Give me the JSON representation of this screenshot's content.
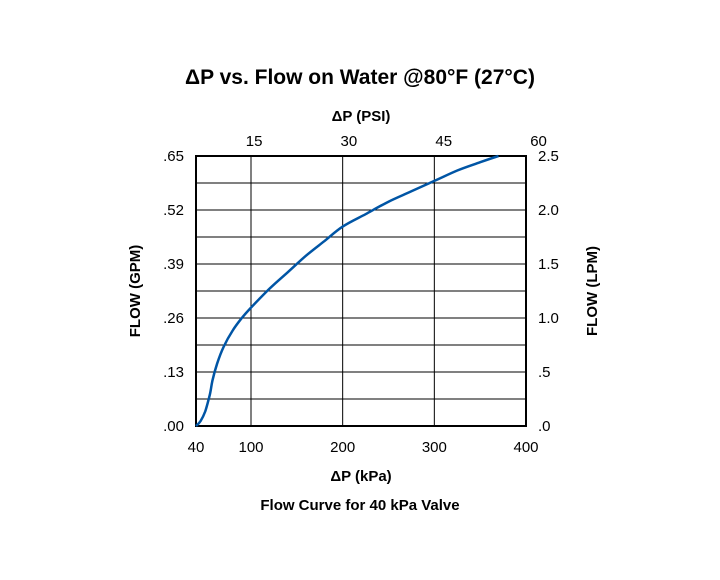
{
  "chart_data": {
    "type": "line",
    "title": "ΔP vs. Flow on Water @80°F (27°C)",
    "caption": "Flow Curve for 40 kPa Valve",
    "xlabel": "ΔP (kPa)",
    "x2label": "ΔP (PSI)",
    "ylabel": "FLOW (GPM)",
    "y2label": "FLOW (LPM)",
    "xlim": [
      40,
      400
    ],
    "ylim": [
      0,
      0.65
    ],
    "y2lim": [
      0,
      2.5
    ],
    "grid": true,
    "x_ticks": [
      {
        "value": 40,
        "label": "40"
      },
      {
        "value": 100,
        "label": "100"
      },
      {
        "value": 200,
        "label": "200"
      },
      {
        "value": 300,
        "label": "300"
      },
      {
        "value": 400,
        "label": "400"
      }
    ],
    "x2_ticks": [
      {
        "value": 103.4,
        "label": "15"
      },
      {
        "value": 206.8,
        "label": "30"
      },
      {
        "value": 310.3,
        "label": "45"
      },
      {
        "value": 413.7,
        "label": "60"
      }
    ],
    "y_ticks": [
      {
        "value": 0.0,
        "label": ".00"
      },
      {
        "value": 0.13,
        "label": ".13"
      },
      {
        "value": 0.26,
        "label": ".26"
      },
      {
        "value": 0.39,
        "label": ".39"
      },
      {
        "value": 0.52,
        "label": ".52"
      },
      {
        "value": 0.65,
        "label": ".65"
      }
    ],
    "y2_ticks": [
      {
        "value": 0.0,
        "label": ".0"
      },
      {
        "value": 0.5,
        "label": ".5"
      },
      {
        "value": 1.0,
        "label": "1.0"
      },
      {
        "value": 1.5,
        "label": "1.5"
      },
      {
        "value": 2.0,
        "label": "2.0"
      },
      {
        "value": 2.5,
        "label": "2.5"
      }
    ],
    "series": [
      {
        "color": "#0055a5",
        "points": [
          [
            40,
            0.0
          ],
          [
            45,
            0.012
          ],
          [
            50,
            0.035
          ],
          [
            55,
            0.075
          ],
          [
            58,
            0.11
          ],
          [
            63,
            0.15
          ],
          [
            70,
            0.19
          ],
          [
            80,
            0.23
          ],
          [
            90,
            0.26
          ],
          [
            100,
            0.285
          ],
          [
            120,
            0.33
          ],
          [
            140,
            0.37
          ],
          [
            160,
            0.41
          ],
          [
            180,
            0.445
          ],
          [
            200,
            0.48
          ],
          [
            225,
            0.51
          ],
          [
            250,
            0.54
          ],
          [
            275,
            0.565
          ],
          [
            300,
            0.59
          ],
          [
            325,
            0.615
          ],
          [
            350,
            0.635
          ],
          [
            370,
            0.65
          ]
        ]
      }
    ]
  }
}
